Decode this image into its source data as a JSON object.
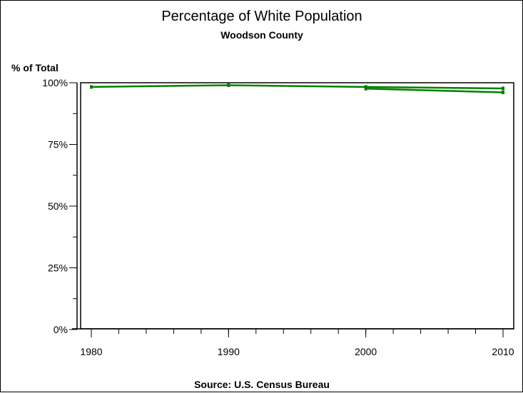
{
  "chart_data": {
    "type": "line",
    "title": "Percentage of White Population",
    "subtitle": "Woodson County",
    "ylabel": "% of Total",
    "xlabel": "",
    "footnote": "Source: U.S. Census Bureau",
    "xlim": [
      1980,
      2010
    ],
    "ylim": [
      0,
      100
    ],
    "x_ticks": [
      "1980",
      "1990",
      "2000",
      "2010"
    ],
    "y_ticks": [
      "0%",
      "25%",
      "50%",
      "75%",
      "100%"
    ],
    "grid": false,
    "line_color": "#008000",
    "series": [
      {
        "x": [
          1980,
          1990,
          2000,
          2010
        ],
        "values": [
          98.3,
          99.0,
          98.3,
          97.7
        ]
      },
      {
        "x": [
          2000,
          2010
        ],
        "values": [
          97.6,
          96.1
        ]
      }
    ]
  }
}
